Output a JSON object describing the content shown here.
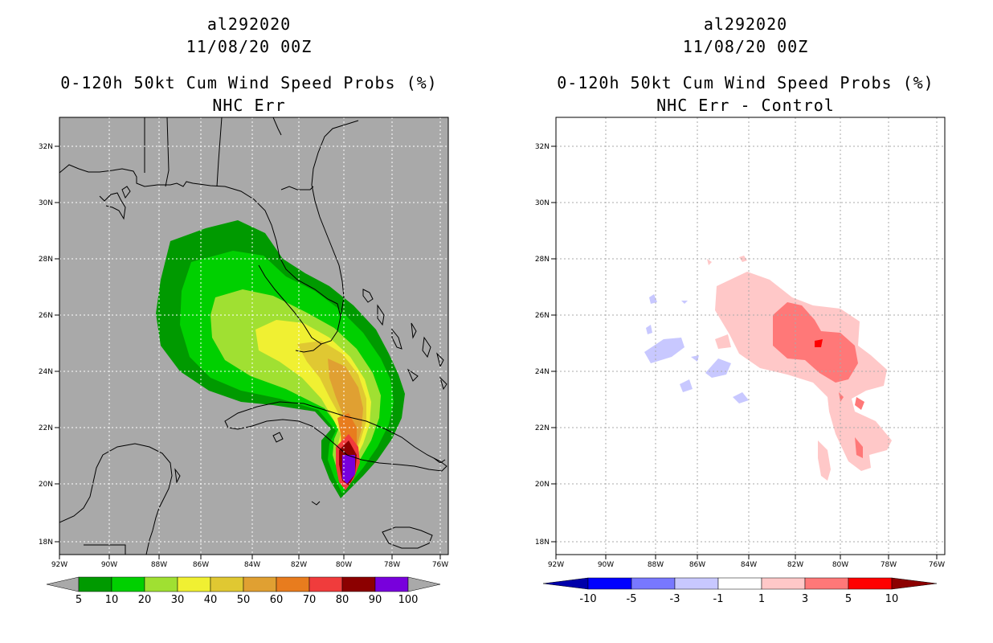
{
  "panels": [
    {
      "storm_id": "al292020",
      "datetime": "11/08/20 00Z",
      "product": "0-120h 50kt Cum Wind Speed Probs (%)",
      "subtitle": "NHC Err",
      "colorbar": {
        "labels": [
          "5",
          "10",
          "20",
          "30",
          "40",
          "50",
          "60",
          "70",
          "80",
          "90",
          "100"
        ],
        "colors": [
          "#009a00",
          "#00d000",
          "#a0e032",
          "#f0f032",
          "#e0c832",
          "#e0a032",
          "#e87c1e",
          "#f03c3c",
          "#8c0000",
          "#7800dc"
        ],
        "arrow_color": "#a9a9a9"
      }
    },
    {
      "storm_id": "al292020",
      "datetime": "11/08/20 00Z",
      "product": "0-120h 50kt Cum Wind Speed Probs (%)",
      "subtitle": "NHC Err - Control",
      "colorbar": {
        "labels": [
          "-10",
          "-5",
          "-3",
          "-1",
          "1",
          "3",
          "5",
          "10"
        ],
        "colors": [
          "#0000ff",
          "#7878ff",
          "#c8c8ff",
          "#ffffff",
          "#ffc8c8",
          "#ff7878",
          "#ff0000"
        ],
        "low_arrow": "#0000aa",
        "high_arrow": "#8c0000"
      }
    }
  ],
  "axes": {
    "lon_labels": [
      "92W",
      "90W",
      "88W",
      "86W",
      "84W",
      "82W",
      "80W",
      "78W",
      "76W"
    ],
    "lat_labels": [
      "32N",
      "30N",
      "28N",
      "26N",
      "24N",
      "22N",
      "20N",
      "18N"
    ],
    "lon_range": [
      -92,
      -75.7
    ],
    "lat_range": [
      17.5,
      33
    ]
  },
  "colors": {
    "land_background_left": "#a9a9a9",
    "background_right": "#ffffff"
  }
}
